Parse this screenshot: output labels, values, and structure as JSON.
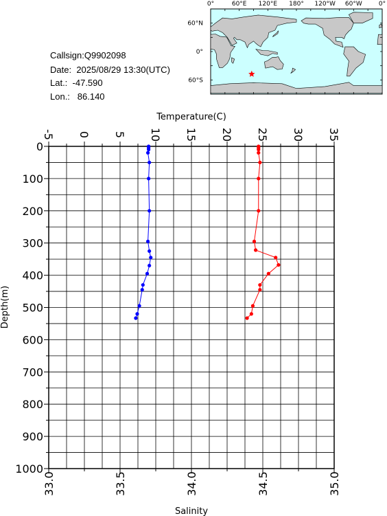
{
  "info": {
    "callsign_label": "Callsign:",
    "callsign": "Q9902098",
    "date_label": "Date:",
    "date": "2025/08/29 13:30(UTC)",
    "lat_label": "Lat.:",
    "lat": "-47.590",
    "lon_label": "Lon.:",
    "lon": "86.140"
  },
  "map": {
    "lon_labels": [
      "0°",
      "60°E",
      "120°E",
      "180°",
      "120°W",
      "60°W",
      "0°"
    ],
    "lat_labels": [
      "60°N",
      "0°",
      "60°S"
    ],
    "ocean_color": "#ccffff",
    "land_color": "#c8c8c8",
    "marker_color": "#ff0000",
    "marker_icon": "star-icon",
    "position": {
      "lon": 86.14,
      "lat": -47.59
    }
  },
  "chart_data": {
    "type": "line",
    "y_axis": {
      "label": "Depth(m)",
      "range": [
        0,
        1000
      ],
      "inverted": true,
      "ticks": [
        0,
        100,
        200,
        300,
        400,
        500,
        600,
        700,
        800,
        900,
        1000
      ]
    },
    "temperature_axis": {
      "label": "Temperature(C)",
      "range": [
        -5,
        35
      ],
      "ticks": [
        -5,
        0,
        5,
        10,
        15,
        20,
        25,
        30,
        35
      ]
    },
    "salinity_axis": {
      "label": "Salinity",
      "range": [
        33.0,
        35.0
      ],
      "ticks": [
        "33.0",
        "33.5",
        "34.0",
        "34.5",
        "35.0"
      ]
    },
    "grid": true,
    "series": [
      {
        "axis": "temperature",
        "color": "#0000ff",
        "points": [
          [
            9.0,
            0
          ],
          [
            9.0,
            5
          ],
          [
            9.0,
            10
          ],
          [
            8.9,
            20
          ],
          [
            9.1,
            50
          ],
          [
            9.0,
            100
          ],
          [
            9.1,
            200
          ],
          [
            8.9,
            295
          ],
          [
            9.1,
            325
          ],
          [
            9.3,
            345
          ],
          [
            9.1,
            370
          ],
          [
            8.8,
            395
          ],
          [
            8.2,
            430
          ],
          [
            8.1,
            445
          ],
          [
            7.7,
            495
          ],
          [
            7.4,
            520
          ],
          [
            7.2,
            533
          ]
        ]
      },
      {
        "axis": "salinity",
        "color": "#ff0000",
        "points": [
          [
            34.47,
            0
          ],
          [
            34.47,
            5
          ],
          [
            34.47,
            10
          ],
          [
            34.47,
            20
          ],
          [
            34.48,
            50
          ],
          [
            34.47,
            100
          ],
          [
            34.47,
            200
          ],
          [
            34.44,
            295
          ],
          [
            34.45,
            322
          ],
          [
            34.59,
            345
          ],
          [
            34.61,
            368
          ],
          [
            34.54,
            395
          ],
          [
            34.48,
            430
          ],
          [
            34.48,
            445
          ],
          [
            34.43,
            495
          ],
          [
            34.42,
            520
          ],
          [
            34.39,
            533
          ]
        ]
      }
    ]
  }
}
